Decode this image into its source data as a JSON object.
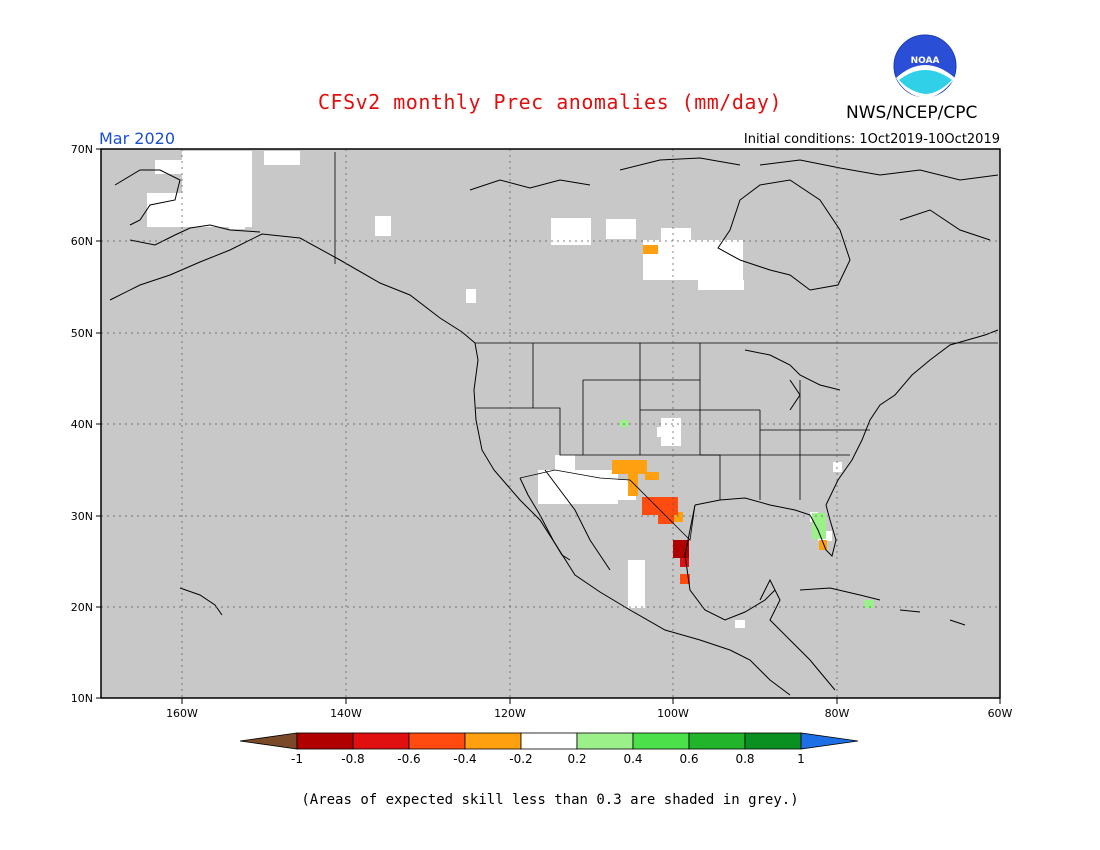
{
  "header": {
    "title": "CFSv2 monthly Prec anomalies (mm/day)",
    "org": "NWS/NCEP/CPC",
    "month": "Mar 2020",
    "initial_conditions": "Initial conditions: 1Oct2019-10Oct2019",
    "logo_text": "NOAA"
  },
  "footnote": "(Areas of expected skill less than 0.3 are shaded in grey.)",
  "map": {
    "lat_labels": [
      "70N",
      "60N",
      "50N",
      "40N",
      "30N",
      "20N",
      "10N"
    ],
    "lon_labels": [
      "160W",
      "140W",
      "120W",
      "100W",
      "80W",
      "60W"
    ],
    "background_color": "#c8c8c8"
  },
  "colorbar": {
    "labels": [
      "-1",
      "-0.8",
      "-0.6",
      "-0.4",
      "-0.2",
      "0.2",
      "0.4",
      "0.6",
      "0.8",
      "1"
    ],
    "colors": [
      "#7a4a28",
      "#b00000",
      "#e01010",
      "#ff4a10",
      "#ffa010",
      "#ffffff",
      "#9cf08a",
      "#4ce04a",
      "#22b42a",
      "#0a9020",
      "#1e6ee6"
    ]
  }
}
